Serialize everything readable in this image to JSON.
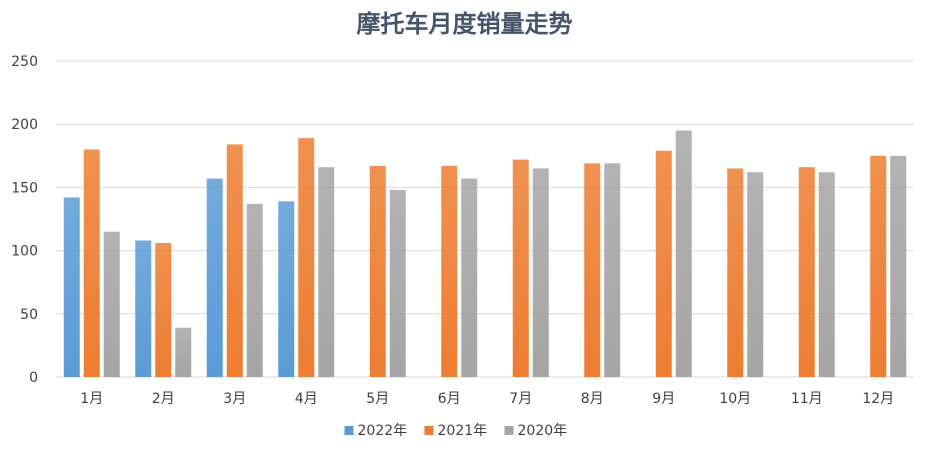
{
  "chart_data": {
    "type": "bar",
    "title": "摩托车月度销量走势",
    "xlabel": "",
    "ylabel": "",
    "categories": [
      "1月",
      "2月",
      "3月",
      "4月",
      "5月",
      "6月",
      "7月",
      "8月",
      "9月",
      "10月",
      "11月",
      "12月"
    ],
    "ylim": [
      0,
      250
    ],
    "yticks": [
      0,
      50,
      100,
      150,
      200,
      250
    ],
    "grid": true,
    "legend_position": "bottom",
    "series": [
      {
        "name": "2022年",
        "color": "#5B9BD5",
        "values": [
          142,
          108,
          157,
          139,
          null,
          null,
          null,
          null,
          null,
          null,
          null,
          null
        ]
      },
      {
        "name": "2021年",
        "color": "#ED7D31",
        "values": [
          180,
          106,
          184,
          189,
          167,
          167,
          172,
          169,
          179,
          165,
          166,
          175
        ]
      },
      {
        "name": "2020年",
        "color": "#A5A5A5",
        "values": [
          115,
          39,
          137,
          166,
          148,
          157,
          165,
          169,
          195,
          162,
          162,
          175
        ]
      }
    ]
  }
}
